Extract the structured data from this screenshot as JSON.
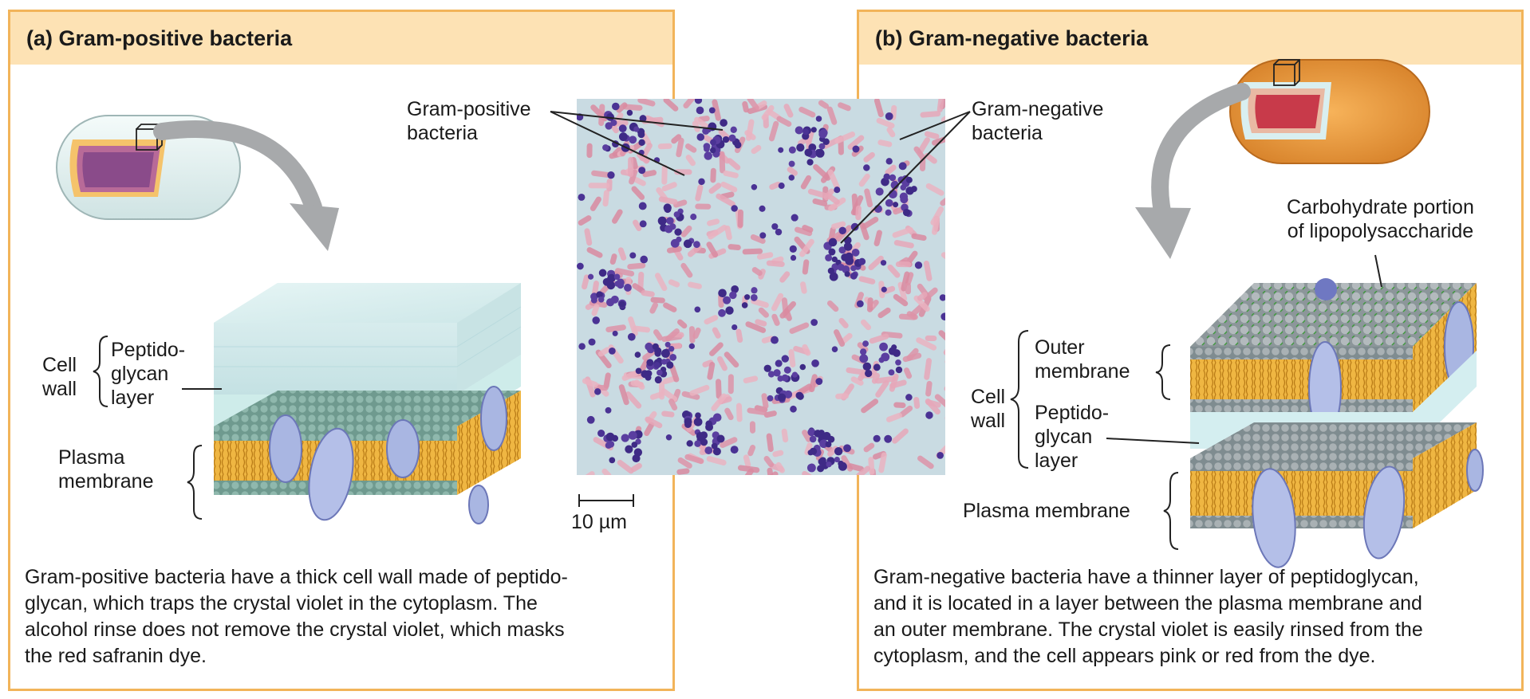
{
  "panel_a": {
    "title": "(a) Gram-positive bacteria",
    "labels": {
      "cell_wall": [
        "Cell",
        "wall"
      ],
      "peptidoglycan": [
        "Peptido-",
        "glycan",
        "layer"
      ],
      "plasma_membrane": [
        "Plasma",
        "membrane"
      ]
    },
    "caption": [
      "Gram-positive bacteria have a thick cell wall made of peptido-",
      "glycan, which traps the crystal violet in the cytoplasm. The",
      "alcohol rinse does not remove the crystal violet, which masks",
      "the red safranin dye."
    ]
  },
  "panel_b": {
    "title": "(b) Gram-negative bacteria",
    "labels": {
      "carbohydrate": [
        "Carbohydrate portion",
        "of lipopolysaccharide"
      ],
      "outer_membrane": [
        "Outer",
        "membrane"
      ],
      "cell_wall": [
        "Cell",
        "wall"
      ],
      "peptidoglycan": [
        "Peptido-",
        "glycan",
        "layer"
      ],
      "plasma_membrane": "Plasma membrane"
    },
    "caption": [
      "Gram-negative bacteria have a thinner layer of peptidoglycan,",
      "and it is located in a layer between the plasma membrane and",
      "an outer membrane. The crystal violet is easily rinsed from the",
      "cytoplasm, and the cell appears pink or red from the dye."
    ]
  },
  "micrograph": {
    "gram_positive_label": [
      "Gram-positive",
      "bacteria"
    ],
    "gram_negative_label": [
      "Gram-negative",
      "bacteria"
    ],
    "scale_bar": "10 µm"
  },
  "colors": {
    "border": "#f2b45a",
    "header": "#fde2b4",
    "peptidoglycan": "#d9eff0",
    "lipid_tails": "#e8a830",
    "head_beads": "#9aa3a8",
    "protein": "#a9b6e2",
    "gram_positive_cell": "#4b2f8e",
    "gram_negative_cell": "#e79ab0"
  }
}
